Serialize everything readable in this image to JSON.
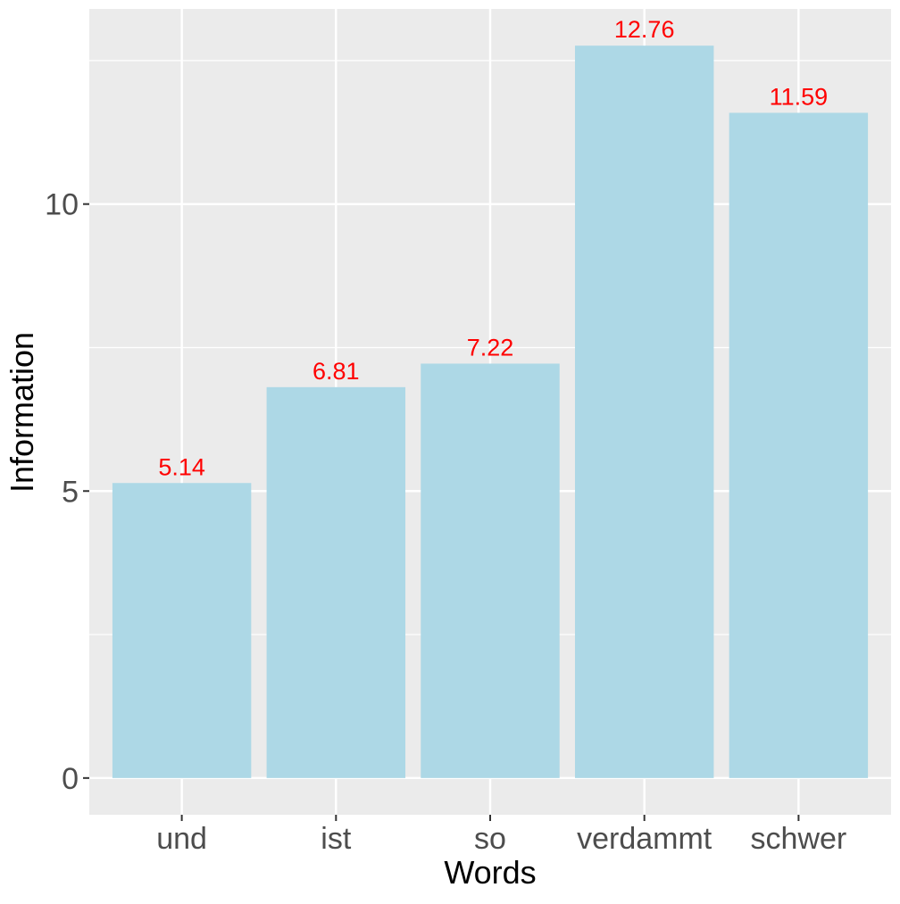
{
  "chart_data": {
    "type": "bar",
    "categories": [
      "und",
      "ist",
      "so",
      "verdammt",
      "schwer"
    ],
    "values": [
      5.14,
      6.81,
      7.22,
      12.76,
      11.59
    ],
    "data_labels": [
      "5.14",
      "6.81",
      "7.22",
      "12.76",
      "11.59"
    ],
    "xlabel": "Words",
    "ylabel": "Information",
    "yticks": [
      0,
      5,
      10
    ],
    "ytick_labels": [
      "0",
      "5",
      "10"
    ],
    "ylim": [
      -0.64,
      13.4
    ],
    "grid": true,
    "legend": "none"
  },
  "colors": {
    "bar_fill": "#ADD8E6",
    "panel_background": "#EBEBEB",
    "gridline": "#FFFFFF",
    "data_label": "#FF0000",
    "tick_label": "#4D4D4D",
    "tick_mark": "#333333"
  }
}
